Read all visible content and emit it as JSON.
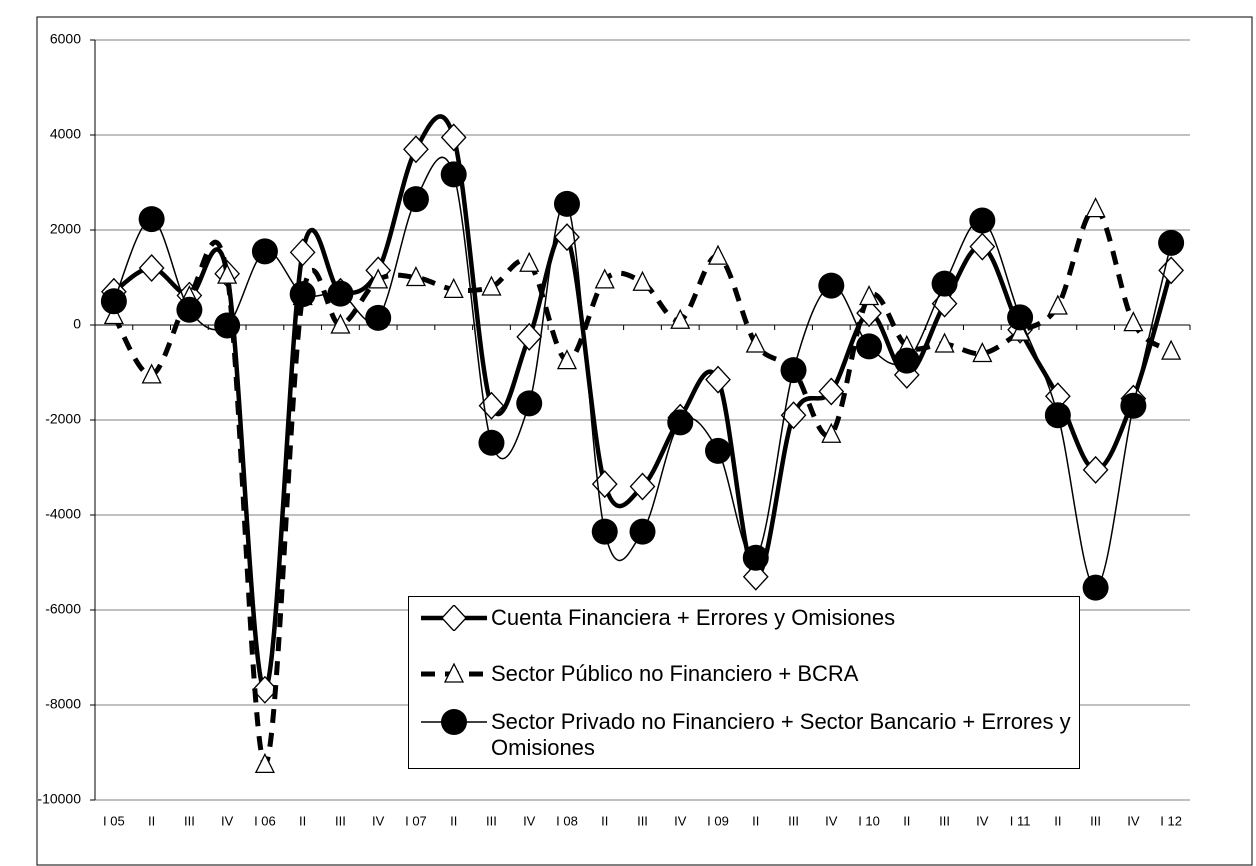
{
  "chart_data": {
    "type": "line",
    "categories": [
      "I 05",
      "II",
      "III",
      "IV",
      "I 06",
      "II",
      "III",
      "IV",
      "I 07",
      "II",
      "III",
      "IV",
      "I 08",
      "II",
      "III",
      "IV",
      "I 09",
      "II",
      "III",
      "IV",
      "I 10",
      "II",
      "III",
      "IV",
      "I 11",
      "II",
      "III",
      "IV",
      "I 12"
    ],
    "series": [
      {
        "name": "Cuenta Financiera + Errores y Omisiones",
        "color": "#000000",
        "values": [
          700,
          1200,
          620,
          1080,
          -7680,
          1530,
          700,
          1150,
          3700,
          3950,
          -1700,
          -250,
          1850,
          -3350,
          -3400,
          -1950,
          -1150,
          -5300,
          -1900,
          -1400,
          250,
          -1050,
          450,
          1650,
          -100,
          -1500,
          -3050,
          -1550,
          1150
        ]
      },
      {
        "name": "Sector Público no Financiero + BCRA",
        "color": "#000000",
        "values": [
          200,
          -1050,
          600,
          1050,
          -9250,
          600,
          0,
          950,
          1000,
          750,
          800,
          1300,
          -750,
          950,
          900,
          100,
          1450,
          -400,
          -950,
          -2300,
          600,
          -450,
          -400,
          -600,
          -150,
          400,
          2450,
          50,
          -550
        ]
      },
      {
        "name": "Sector Privado no Financiero + Sector Bancario + Errores y Omisiones",
        "color": "#000000",
        "values": [
          500,
          2230,
          320,
          -10,
          1550,
          650,
          660,
          150,
          2650,
          3170,
          -2480,
          -1650,
          2550,
          -4350,
          -4350,
          -2050,
          -2650,
          -4900,
          -950,
          830,
          -450,
          -750,
          870,
          2200,
          160,
          -1900,
          -5530,
          -1700,
          1730
        ]
      }
    ],
    "ylim": [
      -10000,
      6000
    ],
    "yticks": [
      -10000,
      -8000,
      -6000,
      -4000,
      -2000,
      0,
      2000,
      4000,
      6000
    ],
    "grid": true
  }
}
